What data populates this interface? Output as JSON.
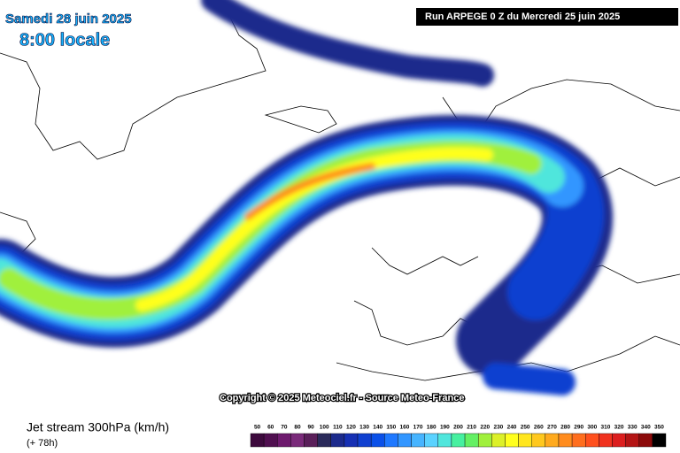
{
  "header": {
    "date": "Samedi 28 juin 2025",
    "time": "8:00 locale",
    "run": "Run ARPEGE 0 Z du Mercredi 25 juin 2025"
  },
  "copyright": "Copyright © 2025 Meteociel.fr - Source Meteo-France",
  "legend": {
    "title": "Jet stream 300hPa (km/h)",
    "lead": "(+ 78h)",
    "scale": [
      {
        "label": 50,
        "color": "#3d0a3d"
      },
      {
        "label": 60,
        "color": "#500f50"
      },
      {
        "label": 70,
        "color": "#6e1a6e"
      },
      {
        "label": 80,
        "color": "#7a2a7a"
      },
      {
        "label": 90,
        "color": "#5a1f5a"
      },
      {
        "label": 100,
        "color": "#2a2a5a"
      },
      {
        "label": 110,
        "color": "#1c2a8c"
      },
      {
        "label": 120,
        "color": "#1630b4"
      },
      {
        "label": 130,
        "color": "#1040d0"
      },
      {
        "label": 140,
        "color": "#0a50e8"
      },
      {
        "label": 150,
        "color": "#1e78ff"
      },
      {
        "label": 160,
        "color": "#3296ff"
      },
      {
        "label": 170,
        "color": "#46b4ff"
      },
      {
        "label": 180,
        "color": "#5ad2ff"
      },
      {
        "label": 190,
        "color": "#50e6dc"
      },
      {
        "label": 200,
        "color": "#46f0a0"
      },
      {
        "label": 210,
        "color": "#64f064"
      },
      {
        "label": 220,
        "color": "#a0f03c"
      },
      {
        "label": 230,
        "color": "#dcf028"
      },
      {
        "label": 240,
        "color": "#ffff1e"
      },
      {
        "label": 250,
        "color": "#ffe61e"
      },
      {
        "label": 260,
        "color": "#ffc81e"
      },
      {
        "label": 270,
        "color": "#ffaa1e"
      },
      {
        "label": 280,
        "color": "#ff8c1e"
      },
      {
        "label": 290,
        "color": "#ff6e1e"
      },
      {
        "label": 300,
        "color": "#ff501e"
      },
      {
        "label": 310,
        "color": "#f0321e"
      },
      {
        "label": 320,
        "color": "#dc1e1e"
      },
      {
        "label": 330,
        "color": "#b41414"
      },
      {
        "label": 340,
        "color": "#8c0a0a"
      },
      {
        "label": 350,
        "color": "#000000"
      }
    ]
  }
}
